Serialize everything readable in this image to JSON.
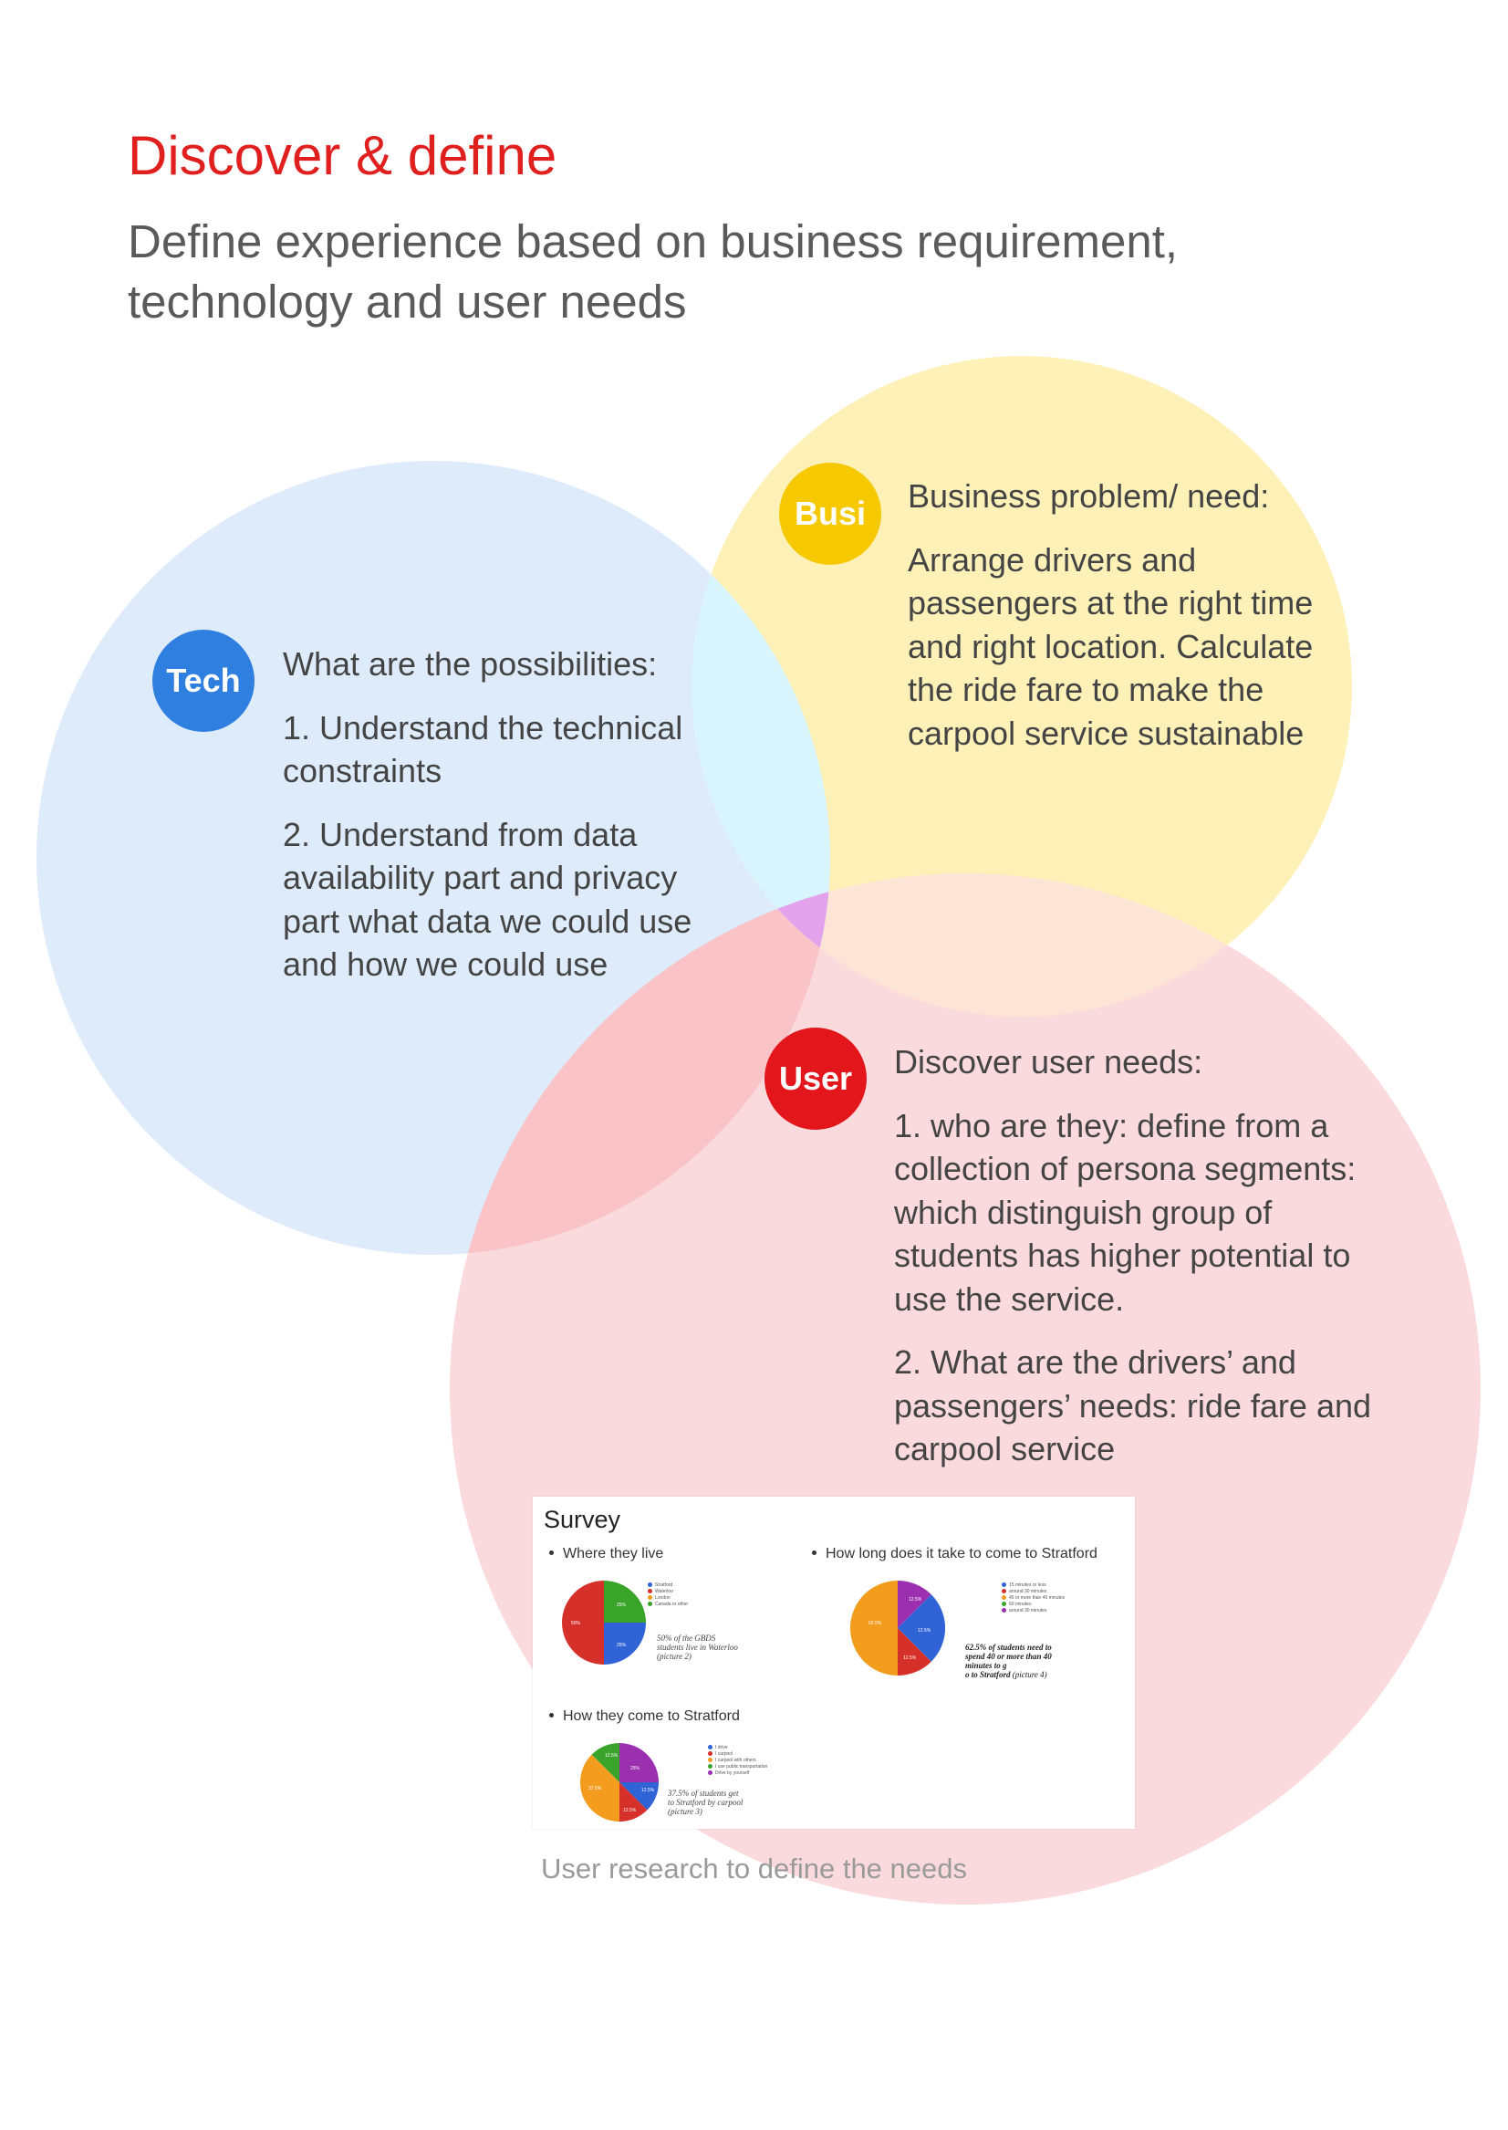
{
  "header": {
    "title": "Discover & define",
    "subtitle": "Define experience based on business requirement, technology and user needs"
  },
  "colors": {
    "title_red": "#e0201f",
    "tech_circle": "#c6dcf6",
    "business_circle": "#fde892",
    "user_circle": "#f8c4c8",
    "tech_badge": "#2f7fe0",
    "business_badge": "#f5c800",
    "user_badge": "#e3161c"
  },
  "tech": {
    "badge": "Tech",
    "heading": "What are the possibilities:",
    "items": [
      "1. Understand the technical constraints",
      "2. Understand from data availability part and privacy part what data we could use and how we could use"
    ]
  },
  "business": {
    "badge": "Busi",
    "heading": "Business problem/ need:",
    "body": "Arrange drivers and passengers at the right time and right location. Calculate the ride fare to make the carpool service sustainable"
  },
  "user": {
    "badge": "User",
    "heading": "Discover user needs:",
    "items": [
      "1. who are they: define from a collection of persona segments: which distinguish group of students has higher potential to use the service.",
      "2. What are the drivers’ and passengers’ needs: ride fare and carpool service"
    ]
  },
  "survey": {
    "title": "Survey",
    "q1": "Where they live",
    "q2": "How long does it take to come to Stratford",
    "q3": "How they come to Stratford",
    "legend1": [
      "Stratford",
      "Waterloo",
      "London",
      "Canada or other"
    ],
    "legend2": [
      "15 minutes or less",
      "around 30 minutes",
      "45 or more than 40 minutes",
      "60 minutes",
      "around 30 minutes"
    ],
    "legend3": [
      "I drive",
      "I carpool",
      "I carpool with others",
      "I use public transportation",
      "Drive by yourself"
    ],
    "note1_a": "50% of the GBDS",
    "note1_b": "students live in Waterloo",
    "note1_c": "(picture 2)",
    "note2_a": "62.5% of students need to",
    "note2_b": "spend 40 or more than 40",
    "note2_c": "minutes to g",
    "note2_d": "o to Stratford",
    "note2_e": "(picture 4)",
    "note3_a": "37.5% of students get",
    "note3_b": "to Stratford by carpool",
    "note3_c": "(picture 3)",
    "pie1_labels": [
      "25%",
      "50%",
      "25%"
    ],
    "pie2_labels": [
      "62.5%",
      "12.5%",
      "12.5%",
      "12.5%"
    ],
    "pie3_labels": [
      "12.5%",
      "25%",
      "12.5%",
      "12.5%",
      "37.5%"
    ]
  },
  "caption": "User research to define the needs"
}
